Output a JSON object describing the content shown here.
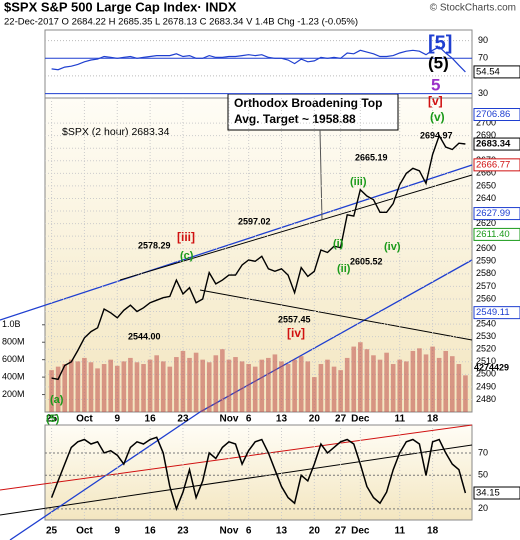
{
  "chart_data": {
    "type": "stock",
    "title": "$SPX S&P 500 Large Cap Index· INDX",
    "copyright": "© StockCharts.com",
    "header": "22-Dec-2017  O 2684.22  H 2685.35  L 2678.13  C 2683.34  V 1.4B  Chg -1.23 (-0.05%)",
    "note_lines": [
      "Orthodox Broadening Top",
      "Avg. Target ~ 1958.88"
    ],
    "annotations": [
      {
        "text": "[5]",
        "color": "#1f3fd0"
      },
      {
        "text": "(5)",
        "color": "#000000"
      },
      {
        "text": "5",
        "color": "#9b30c8"
      },
      {
        "text": "[v]",
        "color": "#d01010"
      },
      {
        "text": "(v)",
        "color": "#1a9a1a"
      },
      {
        "text": "2694.97",
        "color": "#000000"
      },
      {
        "text": "2665.19",
        "color": "#000000"
      },
      {
        "text": "(iii)",
        "color": "#1a9a1a"
      },
      {
        "text": "(i)",
        "color": "#1a9a1a"
      },
      {
        "text": "(ii)",
        "color": "#1a9a1a"
      },
      {
        "text": "2605.52",
        "color": "#000000"
      },
      {
        "text": "(iv)",
        "color": "#1a9a1a"
      },
      {
        "text": "[iii]",
        "color": "#d01010"
      },
      {
        "text": "(c)",
        "color": "#1a9a1a"
      },
      {
        "text": "2578.29",
        "color": "#000000"
      },
      {
        "text": "2597.02",
        "color": "#000000"
      },
      {
        "text": "2544.00",
        "color": "#000000"
      },
      {
        "text": "2557.45",
        "color": "#000000"
      },
      {
        "text": "[iv]",
        "color": "#d01010"
      },
      {
        "text": "(a)",
        "color": "#1a9a1a"
      },
      {
        "text": "(5)",
        "color": "#1a9a1a"
      },
      {
        "text": "4274429",
        "color": "#000000"
      }
    ],
    "xlim": [
      -1,
      64
    ],
    "xticks": [
      {
        "value": 0,
        "label": "25"
      },
      {
        "value": 5,
        "label": "Oct"
      },
      {
        "value": 10,
        "label": "9"
      },
      {
        "value": 15,
        "label": "16"
      },
      {
        "value": 20,
        "label": "23"
      },
      {
        "value": 27,
        "label": "Nov"
      },
      {
        "value": 30,
        "label": "6"
      },
      {
        "value": 35,
        "label": "13"
      },
      {
        "value": 40,
        "label": "20"
      },
      {
        "value": 44,
        "label": "27"
      },
      {
        "value": 47,
        "label": "Dec"
      },
      {
        "value": 53,
        "label": "11"
      },
      {
        "value": 58,
        "label": "18"
      }
    ],
    "series": [
      {
        "name": "$SPX (2 hour) 2683.34",
        "color": "#000000",
        "values": [
          2497,
          2496,
          2507,
          2510,
          2519,
          2529,
          2534,
          2537,
          2552,
          2549,
          2545,
          2551,
          2555,
          2550,
          2553,
          2557,
          2559,
          2561,
          2562,
          2575,
          2564,
          2569,
          2557,
          2560,
          2581,
          2572,
          2575,
          2579,
          2579,
          2587,
          2591,
          2590,
          2594,
          2584,
          2582,
          2584,
          2579,
          2565,
          2585,
          2578,
          2582,
          2599,
          2597,
          2602,
          2601,
          2627,
          2626,
          2647,
          2642,
          2639,
          2629,
          2629,
          2636,
          2651,
          2660,
          2664,
          2662,
          2652,
          2675,
          2690,
          2681,
          2679,
          2684,
          2683.34
        ]
      }
    ],
    "ylim": [
      2470,
      2720
    ],
    "yticks": [
      2480,
      2490,
      2500,
      2510,
      2520,
      2530,
      2540,
      2550,
      2560,
      2570,
      2580,
      2590,
      2600,
      2610,
      2620,
      2630,
      2640,
      2650,
      2660,
      2670,
      2680,
      2690,
      2700
    ],
    "price_labels": [
      {
        "value": 2706.86,
        "color": "#1f3fd0"
      },
      {
        "value": 2666.77,
        "color": "#d01010"
      },
      {
        "value": 2627.99,
        "color": "#1f3fd0"
      },
      {
        "value": {
          "value": 2611.4,
          "label": "2611.40"
        },
        "color": "#1a9a1a"
      },
      {
        "value": 2549.11,
        "color": "#1f3fd0"
      }
    ],
    "volume": {
      "color": "#c0504d",
      "values": [
        480000000,
        520000000,
        550000000,
        600000000,
        580000000,
        620000000,
        570000000,
        500000000,
        550000000,
        600000000,
        530000000,
        580000000,
        620000000,
        570000000,
        550000000,
        600000000,
        650000000,
        580000000,
        520000000,
        630000000,
        700000000,
        620000000,
        680000000,
        600000000,
        570000000,
        650000000,
        720000000,
        600000000,
        630000000,
        580000000,
        550000000,
        520000000,
        600000000,
        620000000,
        660000000,
        580000000,
        550000000,
        600000000,
        640000000,
        580000000,
        400000000,
        550000000,
        600000000,
        520000000,
        480000000,
        620000000,
        750000000,
        800000000,
        720000000,
        650000000,
        600000000,
        680000000,
        550000000,
        600000000,
        580000000,
        700000000,
        730000000,
        660000000,
        750000000,
        620000000,
        700000000,
        640000000,
        550000000,
        420000000
      ],
      "ylim": [
        0,
        3600000000
      ],
      "yticks": [
        {
          "value": 200000000,
          "label": "200M"
        },
        {
          "value": 400000000,
          "label": "400M"
        },
        {
          "value": 600000000,
          "label": "600M"
        },
        {
          "value": 800000000,
          "label": "800M"
        },
        {
          "value": 1000000000,
          "label": "1.0B"
        }
      ]
    },
    "rsi": {
      "color": "#1f3fd0",
      "ylim": [
        25,
        102
      ],
      "yticks": [
        30,
        50,
        70,
        90
      ],
      "values": [
        58,
        57,
        60,
        61,
        63,
        66,
        68,
        69,
        72,
        71,
        70,
        71,
        72,
        70,
        71,
        72,
        73,
        73,
        73,
        75,
        72,
        73,
        70,
        70,
        73,
        71,
        71,
        72,
        72,
        73,
        74,
        73,
        74,
        71,
        70,
        70,
        68,
        64,
        69,
        66,
        67,
        71,
        70,
        71,
        70,
        76,
        75,
        79,
        77,
        75,
        72,
        72,
        73,
        76,
        78,
        79,
        78,
        74,
        79,
        83,
        76,
        70,
        62,
        54.54
      ]
    },
    "oscillator": {
      "color": "#000000",
      "ylim": [
        10,
        95
      ],
      "yticks": [
        20,
        50,
        70
      ],
      "values": [
        30,
        45,
        60,
        75,
        80,
        82,
        78,
        80,
        70,
        72,
        68,
        60,
        75,
        80,
        78,
        82,
        84,
        70,
        40,
        20,
        35,
        55,
        30,
        45,
        70,
        65,
        75,
        80,
        78,
        60,
        72,
        80,
        82,
        70,
        55,
        40,
        30,
        25,
        50,
        45,
        60,
        78,
        70,
        75,
        80,
        82,
        78,
        60,
        40,
        30,
        25,
        35,
        55,
        70,
        80,
        82,
        78,
        50,
        80,
        82,
        70,
        60,
        55,
        34.15
      ]
    }
  }
}
